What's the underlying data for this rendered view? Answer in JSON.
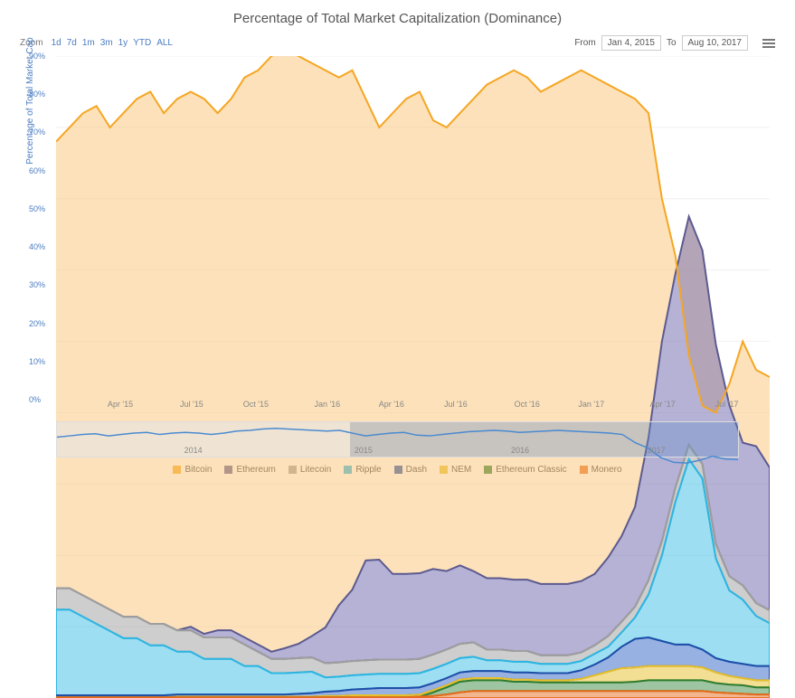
{
  "chart": {
    "type": "stacked-area-line",
    "title": "Percentage of Total Market Capitalization (Dominance)",
    "title_fontsize": 15,
    "title_color": "#555555",
    "background_color": "#ffffff",
    "grid_color": "#eeeeee",
    "font_family": "Arial",
    "yaxis": {
      "title": "Percentage of Total Market Cap",
      "title_color": "#4a7cc2",
      "tick_color": "#4a7cc2",
      "min": 0,
      "max": 90,
      "step": 10,
      "ticks": [
        "0%",
        "10%",
        "20%",
        "30%",
        "40%",
        "50%",
        "60%",
        "70%",
        "80%",
        "90%"
      ]
    },
    "xaxis": {
      "ticks": [
        "Apr '15",
        "Jul '15",
        "Oct '15",
        "Jan '16",
        "Apr '16",
        "Jul '16",
        "Oct '16",
        "Jan '17",
        "Apr '17",
        "Jul '17"
      ],
      "tick_positions_pct": [
        9,
        19,
        28,
        38,
        47,
        56,
        66,
        75,
        85,
        94
      ],
      "tick_color": "#888888"
    },
    "zoom": {
      "label": "Zoom",
      "buttons": [
        "1d",
        "7d",
        "1m",
        "3m",
        "1y",
        "YTD",
        "ALL"
      ]
    },
    "range": {
      "from_label": "From",
      "to_label": "To",
      "from": "Jan 4, 2015",
      "to": "Aug 10, 2017"
    },
    "navigator": {
      "year_ticks": [
        "2014",
        "2015",
        "2016",
        "2017"
      ],
      "year_positions_pct": [
        20,
        45,
        68,
        88
      ],
      "selection_start_pct": 43,
      "selection_end_pct": 100,
      "line_color": "#4a8ad0"
    },
    "legend": {
      "label_color": "#333333"
    },
    "series": [
      {
        "name": "Bitcoin",
        "color": "#f5a623",
        "fill": "rgba(250,200,130,0.55)",
        "data": [
          78,
          80,
          82,
          83,
          80,
          82,
          84,
          85,
          82,
          84,
          85,
          84,
          82,
          84,
          87,
          88,
          90,
          91,
          90,
          89,
          88,
          87,
          88,
          84,
          80,
          82,
          84,
          85,
          81,
          80,
          82,
          84,
          86,
          87,
          88,
          87,
          85,
          86,
          87,
          88,
          87,
          86,
          85,
          84,
          82,
          70,
          62,
          48,
          41,
          40,
          44,
          50,
          46,
          45
        ]
      },
      {
        "name": "Ethereum",
        "color": "#5c5a8f",
        "fill": "rgba(120,115,180,0.55)",
        "data": [
          0,
          0,
          0,
          0,
          0,
          0,
          0,
          0,
          0,
          0,
          0.5,
          0.5,
          1,
          1,
          1,
          1,
          1,
          1.5,
          2,
          3,
          5,
          8,
          10,
          14,
          14,
          12,
          12,
          12,
          12,
          11,
          11,
          10,
          10,
          10,
          10,
          10,
          10,
          10,
          10,
          10,
          10,
          11,
          12,
          14,
          20,
          28,
          30,
          32,
          30,
          28,
          24,
          20,
          22,
          20
        ]
      },
      {
        "name": "Litecoin",
        "color": "#9e9e9e",
        "fill": "rgba(158,158,158,0.5)",
        "data": [
          3,
          3,
          3,
          3,
          3,
          3,
          3,
          3,
          3,
          3,
          3,
          3,
          3,
          3,
          3,
          2,
          2,
          2,
          2,
          2,
          2,
          2,
          2,
          2,
          2,
          2,
          2,
          2,
          2,
          2,
          2,
          2,
          1.5,
          1.5,
          1.5,
          1.5,
          1.2,
          1.2,
          1.2,
          1.2,
          1.2,
          1.5,
          1.5,
          1.5,
          2,
          2,
          2,
          2,
          2,
          2,
          2,
          2,
          1.8,
          1.8
        ]
      },
      {
        "name": "Ripple",
        "color": "#2bb6e3",
        "fill": "rgba(60,190,230,0.5)",
        "data": [
          12,
          12,
          11,
          10,
          9,
          8,
          8,
          7,
          7,
          6,
          6,
          5,
          5,
          5,
          4,
          4,
          3,
          3,
          3,
          3,
          2,
          2,
          2,
          2,
          2,
          2,
          2,
          2,
          2,
          2,
          2,
          2,
          1.5,
          1.5,
          1.5,
          1.5,
          1.3,
          1.3,
          1.3,
          1.3,
          1.5,
          1.5,
          2,
          3,
          6,
          12,
          20,
          26,
          24,
          14,
          10,
          9,
          7,
          6
        ]
      },
      {
        "name": "Dash",
        "color": "#1f4ea8",
        "fill": "rgba(50,100,200,0.5)",
        "data": [
          0.3,
          0.3,
          0.3,
          0.3,
          0.3,
          0.3,
          0.3,
          0.3,
          0.3,
          0.3,
          0.3,
          0.3,
          0.3,
          0.3,
          0.3,
          0.3,
          0.3,
          0.3,
          0.4,
          0.5,
          0.6,
          0.7,
          0.8,
          0.9,
          1,
          1,
          1,
          1,
          1,
          1,
          1,
          1,
          1,
          1,
          1,
          1,
          1,
          1,
          1,
          1.2,
          1.5,
          2,
          3,
          4,
          4,
          3.5,
          3,
          3,
          2.5,
          2,
          2,
          2,
          2,
          2
        ]
      },
      {
        "name": "NEM",
        "color": "#e8c02a",
        "fill": "rgba(232,192,42,0.5)",
        "data": [
          0,
          0,
          0,
          0,
          0,
          0,
          0,
          0,
          0,
          0.1,
          0.1,
          0.1,
          0.1,
          0.1,
          0.1,
          0.1,
          0.1,
          0.1,
          0.1,
          0.1,
          0.2,
          0.2,
          0.3,
          0.3,
          0.3,
          0.3,
          0.3,
          0.3,
          0.3,
          0.3,
          0.3,
          0.3,
          0.3,
          0.3,
          0.3,
          0.3,
          0.3,
          0.3,
          0.3,
          0.5,
          1,
          1.5,
          2,
          2,
          2,
          2,
          2,
          2,
          1.8,
          1.5,
          1.2,
          1,
          1,
          1
        ]
      },
      {
        "name": "Ethereum Classic",
        "color": "#2e7d32",
        "fill": "rgba(60,140,70,0.5)",
        "data": [
          0,
          0,
          0,
          0,
          0,
          0,
          0,
          0,
          0,
          0,
          0,
          0,
          0,
          0,
          0,
          0,
          0,
          0,
          0,
          0,
          0,
          0,
          0,
          0,
          0,
          0,
          0,
          0,
          0.5,
          1,
          1.5,
          1.5,
          1.5,
          1.5,
          1.3,
          1.3,
          1.2,
          1.2,
          1.2,
          1.2,
          1.2,
          1.2,
          1.2,
          1.3,
          1.5,
          1.5,
          1.5,
          1.5,
          1.5,
          1.3,
          1.2,
          1.2,
          1,
          1
        ]
      },
      {
        "name": "Monero",
        "color": "#e86b1c",
        "fill": "rgba(232,107,28,0.5)",
        "data": [
          0.1,
          0.1,
          0.1,
          0.1,
          0.1,
          0.1,
          0.1,
          0.1,
          0.1,
          0.1,
          0.1,
          0.1,
          0.1,
          0.1,
          0.1,
          0.1,
          0.1,
          0.1,
          0.1,
          0.1,
          0.1,
          0.1,
          0.1,
          0.1,
          0.1,
          0.1,
          0.1,
          0.2,
          0.3,
          0.5,
          0.8,
          1,
          1,
          1,
          1,
          1,
          1,
          1,
          1,
          1,
          1,
          1,
          1,
          1,
          1,
          1,
          1,
          1,
          1,
          0.8,
          0.7,
          0.6,
          0.5,
          0.5
        ]
      }
    ]
  }
}
